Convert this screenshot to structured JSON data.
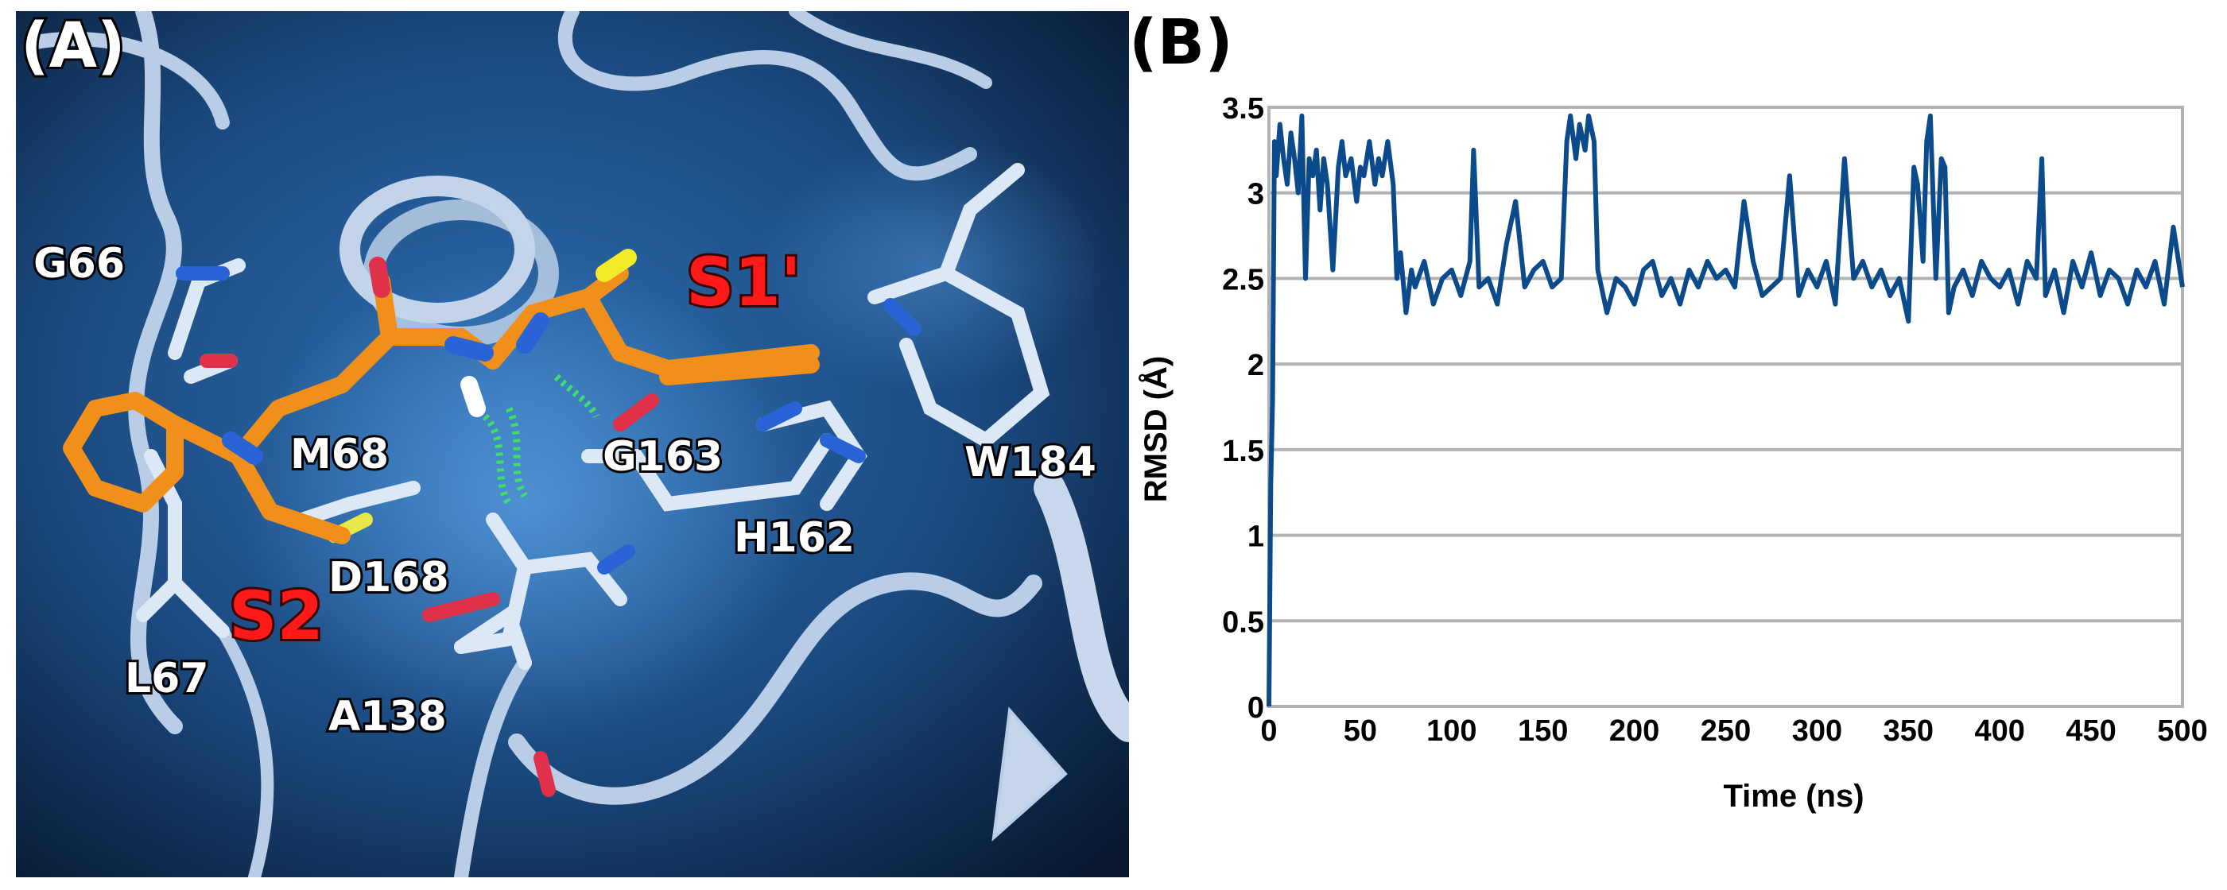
{
  "panel_a": {
    "label": "(A)",
    "residues": [
      "G66",
      "M68",
      "D168",
      "L67",
      "A138",
      "G163",
      "H162",
      "W184"
    ],
    "pockets": [
      "S1'",
      "S2"
    ]
  },
  "panel_b": {
    "label": "(B)"
  },
  "chart_data": {
    "type": "line",
    "xlabel": "Time (ns)",
    "ylabel": "RMSD (Å)",
    "xlim": [
      0,
      500
    ],
    "ylim": [
      0,
      3.5
    ],
    "xticks": [
      0,
      50,
      100,
      150,
      200,
      250,
      300,
      350,
      400,
      450,
      500
    ],
    "yticks": [
      0,
      0.5,
      1,
      1.5,
      2,
      2.5,
      3,
      3.5
    ],
    "grid": "horizontal",
    "line_color": "#0b4a8b",
    "series": [
      {
        "x": [
          0,
          1,
          2,
          3,
          4,
          6,
          8,
          10,
          12,
          14,
          16,
          18,
          20,
          22,
          24,
          26,
          28,
          30,
          32,
          35,
          38,
          40,
          42,
          45,
          48,
          50,
          52,
          55,
          58,
          60,
          62,
          65,
          68,
          70,
          72,
          75,
          78,
          80,
          85,
          90,
          95,
          100,
          105,
          110,
          112,
          115,
          120,
          125,
          130,
          135,
          140,
          145,
          150,
          155,
          160,
          163,
          165,
          168,
          170,
          173,
          175,
          178,
          180,
          183,
          185,
          190,
          195,
          200,
          205,
          210,
          215,
          220,
          225,
          230,
          235,
          240,
          245,
          250,
          255,
          260,
          265,
          270,
          275,
          280,
          285,
          290,
          295,
          300,
          305,
          310,
          315,
          320,
          325,
          330,
          335,
          340,
          345,
          350,
          353,
          355,
          358,
          360,
          362,
          365,
          368,
          370,
          372,
          375,
          380,
          385,
          390,
          395,
          400,
          405,
          410,
          415,
          420,
          423,
          425,
          430,
          435,
          440,
          445,
          450,
          455,
          460,
          465,
          470,
          475,
          480,
          485,
          490,
          495,
          500
        ],
        "y": [
          0.0,
          1.3,
          1.8,
          3.3,
          3.1,
          3.4,
          3.2,
          3.05,
          3.35,
          3.2,
          3.0,
          3.45,
          2.5,
          3.2,
          3.1,
          3.25,
          2.9,
          3.2,
          3.05,
          2.55,
          3.15,
          3.3,
          3.1,
          3.2,
          2.95,
          3.15,
          3.1,
          3.3,
          3.05,
          3.2,
          3.1,
          3.3,
          3.05,
          2.5,
          2.65,
          2.3,
          2.55,
          2.45,
          2.6,
          2.35,
          2.5,
          2.55,
          2.4,
          2.6,
          3.25,
          2.45,
          2.5,
          2.35,
          2.7,
          2.95,
          2.45,
          2.55,
          2.6,
          2.45,
          2.5,
          3.3,
          3.45,
          3.2,
          3.4,
          3.25,
          3.45,
          3.3,
          2.55,
          2.4,
          2.3,
          2.5,
          2.45,
          2.35,
          2.55,
          2.6,
          2.4,
          2.5,
          2.35,
          2.55,
          2.45,
          2.6,
          2.5,
          2.55,
          2.45,
          2.95,
          2.6,
          2.4,
          2.45,
          2.5,
          3.1,
          2.4,
          2.55,
          2.45,
          2.6,
          2.35,
          3.2,
          2.5,
          2.6,
          2.45,
          2.55,
          2.4,
          2.5,
          2.25,
          3.15,
          3.05,
          2.6,
          3.3,
          3.45,
          2.5,
          3.2,
          3.15,
          2.3,
          2.45,
          2.55,
          2.4,
          2.6,
          2.5,
          2.45,
          2.55,
          2.35,
          2.6,
          2.5,
          3.2,
          2.4,
          2.55,
          2.3,
          2.6,
          2.45,
          2.65,
          2.4,
          2.55,
          2.5,
          2.35,
          2.55,
          2.45,
          2.6,
          2.35,
          2.8,
          2.45
        ]
      }
    ]
  }
}
